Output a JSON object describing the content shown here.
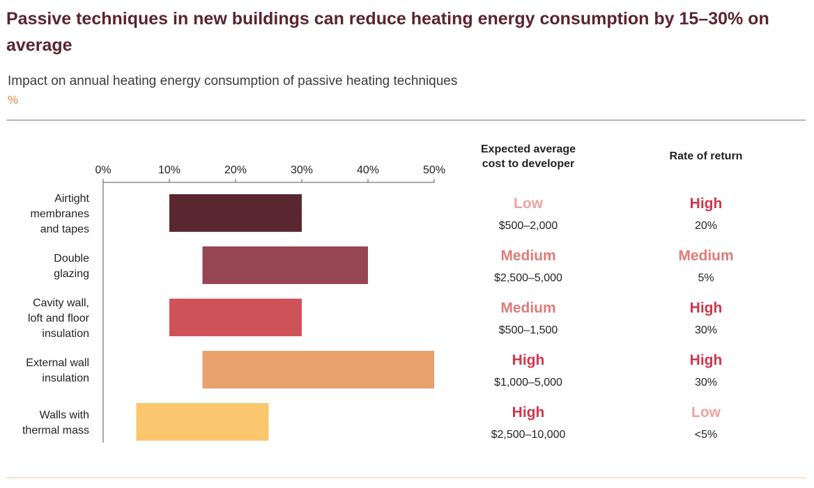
{
  "title": "Passive techniques in new buildings can reduce heating energy consumption by 15–30% on average",
  "subtitle": "Impact on annual heating energy consumption of passive heating techniques",
  "unit": "%",
  "colors": {
    "title": "#5a2431",
    "low_rating": "#eea2a0",
    "medium_rating": "#e07a79",
    "high_rating": "#d1364b"
  },
  "chart_data": {
    "type": "bar",
    "orientation": "horizontal",
    "subtype": "floating range",
    "xlim": [
      0,
      50
    ],
    "xticks": [
      "0%",
      "10%",
      "20%",
      "30%",
      "40%",
      "50%"
    ],
    "xtick_values": [
      0,
      10,
      20,
      30,
      40,
      50
    ],
    "grid": false,
    "categories": [
      "Airtight membranes and tapes",
      "Double glazing",
      "Cavity wall, loft and floor insulation",
      "External wall insulation",
      "Walls with thermal mass"
    ],
    "category_lines": [
      [
        "Airtight",
        "membranes",
        "and tapes"
      ],
      [
        "Double",
        "glazing"
      ],
      [
        "Cavity wall,",
        "loft and floor",
        "insulation"
      ],
      [
        "External wall",
        "insulation"
      ],
      [
        "Walls with",
        "thermal mass"
      ]
    ],
    "ranges": [
      [
        10,
        30
      ],
      [
        15,
        40
      ],
      [
        10,
        30
      ],
      [
        15,
        50
      ],
      [
        5,
        25
      ]
    ],
    "bar_colors": [
      "#5a2630",
      "#964652",
      "#cf5258",
      "#e8a06c",
      "#fac76e"
    ]
  },
  "table": {
    "cost_header": "Expected average\ncost to developer",
    "return_header": "Rate of return",
    "rows": [
      {
        "cost_rating": "Low",
        "cost_level": "low",
        "cost_value": "$500–2,000",
        "return_rating": "High",
        "return_level": "high",
        "return_value": "20%"
      },
      {
        "cost_rating": "Medium",
        "cost_level": "medium",
        "cost_value": "$2,500–5,000",
        "return_rating": "Medium",
        "return_level": "medium",
        "return_value": "5%"
      },
      {
        "cost_rating": "Medium",
        "cost_level": "medium",
        "cost_value": "$500–1,500",
        "return_rating": "High",
        "return_level": "high",
        "return_value": "30%"
      },
      {
        "cost_rating": "High",
        "cost_level": "high",
        "cost_value": "$1,000–5,000",
        "return_rating": "High",
        "return_level": "high",
        "return_value": "30%"
      },
      {
        "cost_rating": "High",
        "cost_level": "high",
        "cost_value": "$2,500–10,000",
        "return_rating": "Low",
        "return_level": "low",
        "return_value": "<5%"
      }
    ]
  }
}
